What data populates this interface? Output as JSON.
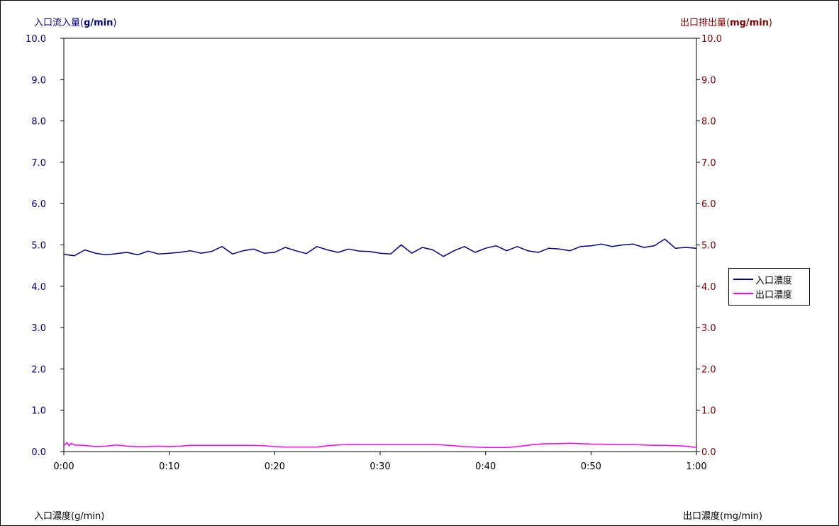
{
  "axis_titles": {
    "left_prefix": "入口流入量(",
    "left_unit": "g/min",
    "left_suffix": ")",
    "right_prefix": "出口排出量(",
    "right_unit": "mg/min",
    "right_suffix": ")"
  },
  "footer": {
    "left": "入口濃度(g/min)",
    "right": "出口濃度(mg/min)"
  },
  "colors": {
    "left_axis": "#000080",
    "right_axis": "#800000",
    "inlet_series": "#000080",
    "outlet_series": "#FF00FF"
  },
  "chart_data": {
    "type": "line",
    "title": "",
    "x_ticks": [
      "0:00",
      "0:10",
      "0:20",
      "0:30",
      "0:40",
      "0:50",
      "1:00"
    ],
    "x_range_minutes": [
      0,
      60
    ],
    "y_left": {
      "label": "入口流入量(g/min)",
      "range": [
        0,
        10
      ],
      "ticks": [
        "0.0",
        "1.0",
        "2.0",
        "3.0",
        "4.0",
        "5.0",
        "6.0",
        "7.0",
        "8.0",
        "9.0",
        "10.0"
      ]
    },
    "y_right": {
      "label": "出口排出量(mg/min)",
      "range": [
        0,
        10
      ],
      "ticks": [
        "0.0",
        "1.0",
        "2.0",
        "3.0",
        "4.0",
        "5.0",
        "6.0",
        "7.0",
        "8.0",
        "9.0",
        "10.0"
      ]
    },
    "legend": {
      "position": "right",
      "entries": [
        "入口濃度",
        "出口濃度"
      ]
    },
    "series": [
      {
        "name": "入口濃度",
        "axis": "left",
        "x": [
          0,
          1,
          2,
          3,
          4,
          5,
          6,
          7,
          8,
          9,
          10,
          11,
          12,
          13,
          14,
          15,
          16,
          17,
          18,
          19,
          20,
          21,
          22,
          23,
          24,
          25,
          26,
          27,
          28,
          29,
          30,
          31,
          32,
          33,
          34,
          35,
          36,
          37,
          38,
          39,
          40,
          41,
          42,
          43,
          44,
          45,
          46,
          47,
          48,
          49,
          50,
          51,
          52,
          53,
          54,
          55,
          56,
          57,
          58,
          59,
          60
        ],
        "y": [
          4.77,
          4.74,
          4.88,
          4.8,
          4.76,
          4.79,
          4.82,
          4.76,
          4.85,
          4.78,
          4.8,
          4.82,
          4.86,
          4.8,
          4.84,
          4.96,
          4.78,
          4.86,
          4.9,
          4.8,
          4.82,
          4.94,
          4.86,
          4.79,
          4.96,
          4.88,
          4.82,
          4.9,
          4.85,
          4.84,
          4.8,
          4.78,
          5.0,
          4.8,
          4.94,
          4.88,
          4.72,
          4.86,
          4.96,
          4.82,
          4.92,
          4.98,
          4.86,
          4.96,
          4.86,
          4.82,
          4.92,
          4.9,
          4.86,
          4.96,
          4.98,
          5.02,
          4.96,
          5.0,
          5.02,
          4.94,
          4.98,
          5.14,
          4.92,
          4.94,
          4.92
        ]
      },
      {
        "name": "出口濃度",
        "axis": "right",
        "x": [
          0,
          0.3,
          0.5,
          0.7,
          1,
          2,
          3,
          4,
          5,
          6,
          7,
          8,
          9,
          10,
          11,
          12,
          13,
          14,
          15,
          16,
          17,
          18,
          19,
          20,
          21,
          22,
          23,
          24,
          25,
          26,
          27,
          28,
          29,
          30,
          31,
          32,
          33,
          34,
          35,
          36,
          37,
          38,
          39,
          40,
          41,
          42,
          43,
          44,
          45,
          46,
          47,
          48,
          49,
          50,
          51,
          52,
          53,
          54,
          55,
          56,
          57,
          58,
          59,
          60
        ],
        "y": [
          0.14,
          0.22,
          0.14,
          0.2,
          0.16,
          0.15,
          0.12,
          0.13,
          0.16,
          0.13,
          0.12,
          0.12,
          0.13,
          0.12,
          0.13,
          0.15,
          0.15,
          0.15,
          0.15,
          0.15,
          0.15,
          0.15,
          0.14,
          0.12,
          0.11,
          0.11,
          0.11,
          0.11,
          0.14,
          0.16,
          0.17,
          0.17,
          0.17,
          0.17,
          0.17,
          0.17,
          0.17,
          0.17,
          0.17,
          0.16,
          0.14,
          0.12,
          0.11,
          0.1,
          0.1,
          0.1,
          0.12,
          0.15,
          0.18,
          0.19,
          0.19,
          0.2,
          0.19,
          0.18,
          0.18,
          0.17,
          0.17,
          0.17,
          0.16,
          0.15,
          0.15,
          0.14,
          0.13,
          0.1
        ]
      }
    ]
  }
}
